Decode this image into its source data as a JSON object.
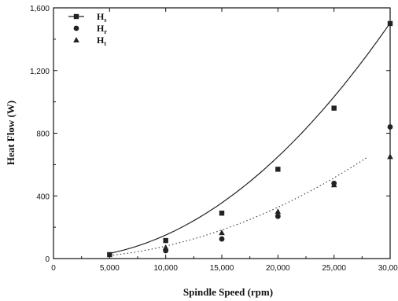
{
  "chart_data": {
    "type": "scatter",
    "title": "",
    "xlabel": "Spindle Speed (rpm)",
    "ylabel": "Heat Flow (W)",
    "xlim": [
      0,
      30000
    ],
    "ylim": [
      0,
      1600
    ],
    "x_ticks": [
      "0",
      "5,000",
      "10,000",
      "15,000",
      "20,000",
      "25,000",
      "30,000"
    ],
    "y_ticks": [
      "0",
      "400",
      "800",
      "1,200",
      "1,600"
    ],
    "grid": false,
    "legend_position": "top-left",
    "series": [
      {
        "name": "Hs",
        "legend_main": "H",
        "legend_sub": "s",
        "marker": "square",
        "x": [
          5000,
          10000,
          15000,
          20000,
          25000,
          30000
        ],
        "values": [
          25,
          115,
          290,
          570,
          960,
          1500
        ]
      },
      {
        "name": "Hr",
        "legend_main": "H",
        "legend_sub": "r",
        "marker": "circle",
        "x": [
          10000,
          15000,
          20000,
          25000,
          30000
        ],
        "values": [
          50,
          125,
          270,
          480,
          840
        ]
      },
      {
        "name": "Ht",
        "legend_main": "H",
        "legend_sub": "t",
        "marker": "triangle",
        "x": [
          10000,
          15000,
          20000,
          25000,
          30000
        ],
        "values": [
          70,
          165,
          300,
          470,
          650
        ]
      }
    ],
    "fit_curves": [
      {
        "series": "Hs",
        "style": "solid",
        "x_range": [
          5000,
          30000
        ],
        "coefficients": [
          5.0,
          -0.0032,
          1.772e-06
        ]
      },
      {
        "series": "Hr/Ht",
        "style": "dotted",
        "x_range": [
          5000,
          28000
        ],
        "coefficients": [
          1.5,
          -0.0007,
          8.5e-07
        ]
      }
    ],
    "colors": {
      "axis": "#111111",
      "marker": "#222222",
      "curve": "#222222"
    }
  }
}
